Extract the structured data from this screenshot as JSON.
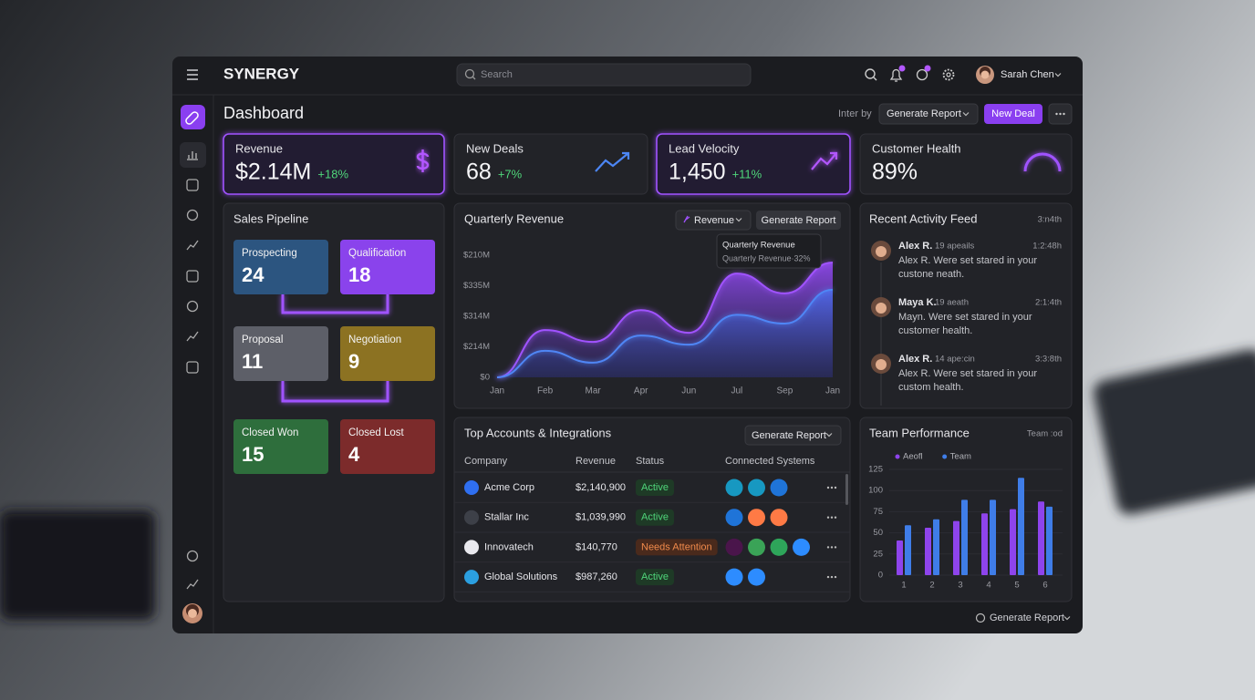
{
  "app": {
    "brand": "SYNERGY",
    "search_placeholder": "Search",
    "user_name": "Sarah Chen"
  },
  "header": {
    "title": "Dashboard",
    "filter_label": "Inter by",
    "report_button": "Generate Report",
    "new_deal_button": "New Deal"
  },
  "kpis": [
    {
      "label": "Revenue",
      "value": "$2.14M",
      "change": "+18%"
    },
    {
      "label": "New Deals",
      "value": "68",
      "change": "+7%"
    },
    {
      "label": "Lead Velocity",
      "value": "1,450",
      "change": "+11%"
    },
    {
      "label": "Customer Health",
      "value": "89%"
    }
  ],
  "pipeline": {
    "title": "Sales Pipeline",
    "stages": [
      {
        "name": "Prospecting",
        "count": 24
      },
      {
        "name": "Qualification",
        "count": 18
      },
      {
        "name": "Proposal",
        "count": 11
      },
      {
        "name": "Negotiation",
        "count": 9
      },
      {
        "name": "Closed Won",
        "count": 15
      },
      {
        "name": "Closed Lost",
        "count": 4
      }
    ]
  },
  "quarterly_revenue": {
    "type": "area",
    "title": "Quarterly Revenue",
    "metric_dropdown": "Revenue",
    "report_button": "Generate Report",
    "tooltip": {
      "title": "Quarterly Revenue",
      "text": "Quarterly Revenue·32%"
    },
    "categories": [
      "Jan",
      "Feb",
      "Mar",
      "Apr",
      "Jun",
      "Jul",
      "Sep",
      "Jan"
    ],
    "y_labels": [
      "$210M",
      "$335M",
      "$314M",
      "$214M",
      "$0"
    ],
    "ylim": [
      0,
      4
    ],
    "series": [
      {
        "color": "#a052ff",
        "values": [
          0,
          1.55,
          1.16,
          2.2,
          1.46,
          3.4,
          2.75,
          3.76
        ]
      },
      {
        "color": "#4f86f5",
        "values": [
          0,
          0.87,
          0.48,
          1.37,
          1.07,
          2.05,
          1.76,
          2.87
        ]
      }
    ]
  },
  "accounts": {
    "title": "Top Accounts & Integrations",
    "report_button": "Generate Report",
    "columns": [
      "Company",
      "Revenue",
      "Status",
      "Connected Systems"
    ],
    "rows": [
      [
        "Acme Corp",
        "$2,140,900",
        "Active"
      ],
      [
        "Stallar Inc",
        "$1,039,990",
        "Active"
      ],
      [
        "Innovatech",
        "$140,770",
        "Needs Attention"
      ],
      [
        "Global Solutions",
        "$987,260",
        "Active"
      ]
    ]
  },
  "activity": {
    "title": "Recent Activity Feed",
    "period": "3:n4th",
    "items": [
      {
        "name": "Alex R.",
        "meta": "19 apeails",
        "time": "1:2:48h",
        "text": [
          "Alex R.  Were set stared in your",
          "custone neath."
        ]
      },
      {
        "name": "Maya K.",
        "meta": "19 aeath",
        "time": "2:1:4th",
        "text": [
          "Mayn.  Were set stared in your",
          "customer health."
        ]
      },
      {
        "name": "Alex R.",
        "meta": "14 ape:cin",
        "time": "3:3:8th",
        "text": [
          "Alex R.  Were set stared in your",
          "custom health."
        ]
      }
    ]
  },
  "team_performance": {
    "type": "bar",
    "title": "Team Performance",
    "filter": "Team :od",
    "categories": [
      "1",
      "2",
      "3",
      "4",
      "5",
      "6"
    ],
    "ylim": [
      0,
      125
    ],
    "yticks": [
      0,
      25,
      50,
      75,
      100,
      125
    ],
    "series": [
      {
        "name": "Aeofl",
        "color": "#8e44ec",
        "values": [
          41,
          56,
          64,
          73,
          78,
          87
        ]
      },
      {
        "name": "Team",
        "color": "#3f7de8",
        "values": [
          59,
          66,
          89,
          89,
          115,
          81
        ]
      }
    ]
  },
  "footer": {
    "report_button": "Generate Report"
  }
}
